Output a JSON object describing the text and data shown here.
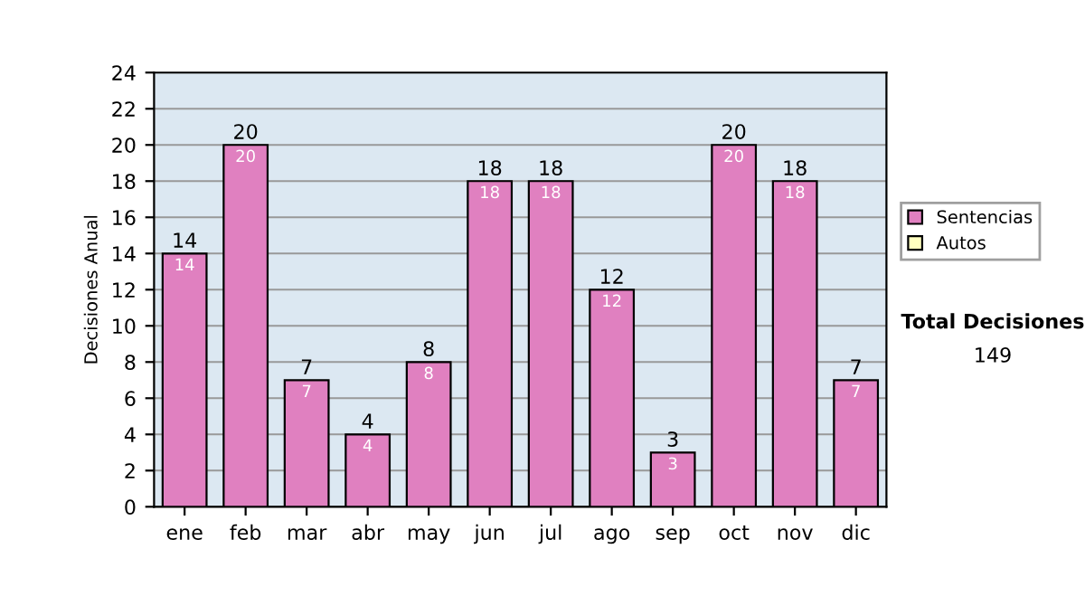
{
  "chart_data": {
    "type": "bar",
    "ylabel": "Decisiones Anual",
    "categories": [
      "ene",
      "feb",
      "mar",
      "abr",
      "may",
      "jun",
      "jul",
      "ago",
      "sep",
      "oct",
      "nov",
      "dic"
    ],
    "series": [
      {
        "name": "Sentencias",
        "color": "#e080c0",
        "values": [
          14,
          20,
          7,
          4,
          8,
          18,
          18,
          12,
          3,
          20,
          18,
          7
        ]
      },
      {
        "name": "Autos",
        "color": "#ffffc0",
        "values": [
          null,
          null,
          null,
          null,
          null,
          null,
          null,
          null,
          null,
          null,
          null,
          null
        ]
      }
    ],
    "stacked": true,
    "data_labels": true,
    "totals": [
      "14",
      "20",
      "7",
      "4",
      "8",
      "18",
      "18",
      "12",
      "3",
      "20",
      "18",
      "7"
    ],
    "ylim": [
      0,
      24
    ],
    "yticks": [
      0,
      2,
      4,
      6,
      8,
      10,
      12,
      14,
      16,
      18,
      20,
      22,
      24
    ],
    "grid": "y",
    "legend": "right",
    "annotations": [
      "Total Decisiones",
      "149"
    ]
  }
}
